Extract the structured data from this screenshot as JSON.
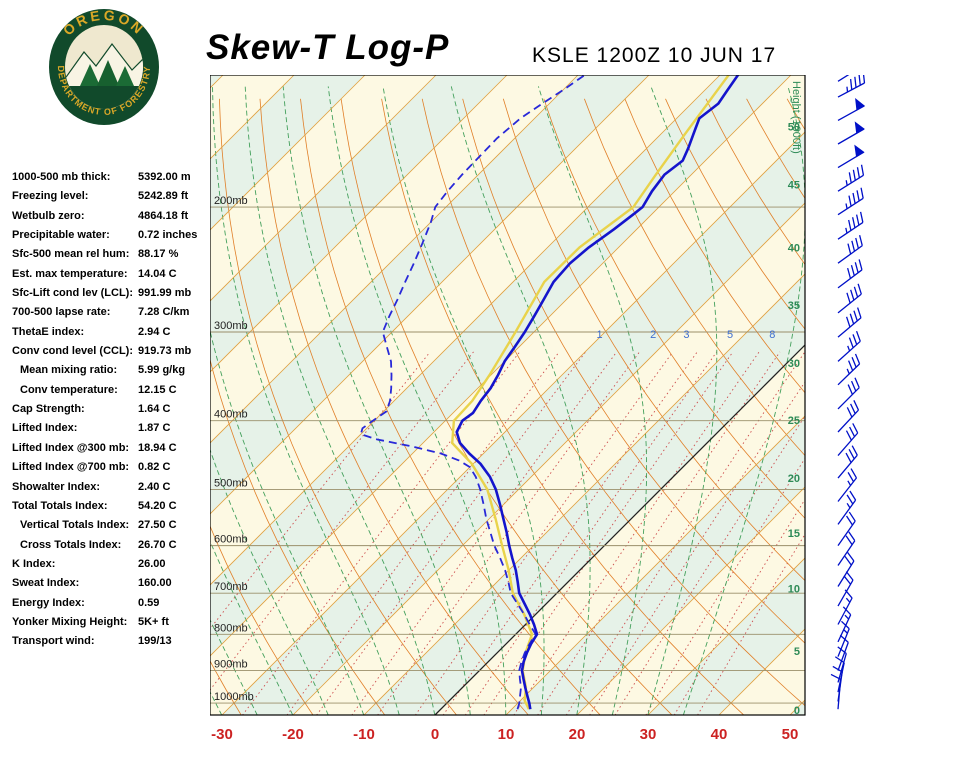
{
  "header": {
    "title": "Skew-T Log-P",
    "station": "KSLE 1200Z 10 JUN 17"
  },
  "logo": {
    "arc_top": "OREGON",
    "arc_bottom": "DEPARTMENT OF FORESTRY"
  },
  "stats": [
    {
      "label": "1000-500 mb thick:",
      "value": "5392.00 m"
    },
    {
      "label": "Freezing level:",
      "value": "5242.89 ft"
    },
    {
      "label": "Wetbulb zero:",
      "value": "4864.18 ft"
    },
    {
      "label": "Precipitable water:",
      "value": "0.72 inches"
    },
    {
      "label": "Sfc-500 mean rel hum:",
      "value": "88.17 %"
    },
    {
      "label": "Est. max temperature:",
      "value": "14.04 C"
    },
    {
      "label": "Sfc-Lift cond lev (LCL):",
      "value": "991.99 mb"
    },
    {
      "label": "700-500 lapse rate:",
      "value": "7.28 C/km"
    },
    {
      "label": "ThetaE index:",
      "value": "2.94 C"
    },
    {
      "label": "Conv cond level (CCL):",
      "value": "919.73 mb"
    },
    {
      "label": "Mean mixing ratio:",
      "value": "5.99 g/kg",
      "indent": true
    },
    {
      "label": "Conv temperature:",
      "value": "12.15 C",
      "indent": true
    },
    {
      "label": "Cap Strength:",
      "value": "1.64 C"
    },
    {
      "label": "Lifted Index:",
      "value": "1.87 C"
    },
    {
      "label": "Lifted Index @300 mb:",
      "value": "18.94 C"
    },
    {
      "label": "Lifted Index @700 mb:",
      "value": "0.82 C"
    },
    {
      "label": "Showalter Index:",
      "value": "2.40 C"
    },
    {
      "label": "Total Totals Index:",
      "value": "54.20 C"
    },
    {
      "label": "Vertical Totals Index:",
      "value": "27.50 C",
      "indent": true
    },
    {
      "label": "Cross Totals Index:",
      "value": "26.70 C",
      "indent": true
    },
    {
      "label": "K Index:",
      "value": "26.00"
    },
    {
      "label": "Sweat Index:",
      "value": "160.00"
    },
    {
      "label": "Energy Index:",
      "value": "0.59"
    },
    {
      "label": "Yonker Mixing Height:",
      "value": "5K+ ft"
    },
    {
      "label": "Transport wind:",
      "value": "199/13"
    }
  ],
  "chart_data": {
    "type": "skew-t-log-p",
    "station": "KSLE 1200Z 10 JUN 17",
    "pressure_axis_mb": [
      200,
      300,
      400,
      500,
      600,
      700,
      800,
      900,
      1000
    ],
    "temp_axis_c": [
      -30,
      -20,
      -10,
      0,
      10,
      20,
      30,
      40,
      50
    ],
    "isotherm_step_c": 10,
    "height_scale": {
      "label": "Height (1000ft)",
      "points": [
        [
          0,
          1022
        ],
        [
          5,
          844
        ],
        [
          10,
          690
        ],
        [
          15,
          576
        ],
        [
          20,
          482
        ],
        [
          25,
          399
        ],
        [
          30,
          332
        ],
        [
          35,
          275
        ],
        [
          40,
          228
        ],
        [
          45,
          186
        ],
        [
          50,
          154
        ]
      ]
    },
    "mixing_ratio_lines_gkg": [
      0.1,
      0.2,
      0.4,
      0.7,
      1,
      1.5,
      2,
      3,
      4,
      5,
      6,
      8,
      10,
      13,
      16,
      20,
      26,
      33,
      40
    ],
    "mixing_ratio_labels_gkg": [
      1,
      2,
      3,
      5,
      8
    ],
    "dry_adiabats_c": [
      -40,
      -30,
      -20,
      -10,
      0,
      10,
      20,
      30,
      40,
      50,
      60,
      70,
      80,
      90,
      100,
      110,
      120,
      130,
      140,
      150,
      160
    ],
    "moist_adiabats_c": [
      -35,
      -30,
      -25,
      -20,
      -15,
      -10,
      -5,
      0,
      5,
      10,
      15,
      20,
      25,
      30,
      35
    ],
    "temperature_profile": [
      [
        1020,
        12.6
      ],
      [
        1000,
        11.6
      ],
      [
        975,
        10.2
      ],
      [
        950,
        8.8
      ],
      [
        925,
        7.4
      ],
      [
        900,
        6.0
      ],
      [
        875,
        5.0
      ],
      [
        850,
        4.2
      ],
      [
        825,
        3.5
      ],
      [
        800,
        3.0
      ],
      [
        775,
        1.2
      ],
      [
        750,
        -0.8
      ],
      [
        725,
        -3.0
      ],
      [
        700,
        -5.3
      ],
      [
        675,
        -7.1
      ],
      [
        650,
        -9.0
      ],
      [
        625,
        -11.2
      ],
      [
        600,
        -13.4
      ],
      [
        575,
        -15.6
      ],
      [
        550,
        -18.0
      ],
      [
        525,
        -20.5
      ],
      [
        500,
        -23.2
      ],
      [
        480,
        -25.8
      ],
      [
        460,
        -29.0
      ],
      [
        445,
        -32.0
      ],
      [
        430,
        -34.8
      ],
      [
        415,
        -36.8
      ],
      [
        400,
        -37.6
      ],
      [
        390,
        -37.2
      ],
      [
        375,
        -37.8
      ],
      [
        360,
        -38.2
      ],
      [
        345,
        -39.0
      ],
      [
        330,
        -40.0
      ],
      [
        315,
        -40.6
      ],
      [
        300,
        -41.3
      ],
      [
        285,
        -42.2
      ],
      [
        270,
        -43.2
      ],
      [
        255,
        -44.3
      ],
      [
        240,
        -44.6
      ],
      [
        228,
        -44.2
      ],
      [
        215,
        -43.2
      ],
      [
        205,
        -42.6
      ],
      [
        200,
        -42.3
      ],
      [
        190,
        -43.2
      ],
      [
        180,
        -43.8
      ],
      [
        172,
        -43.2
      ],
      [
        165,
        -44.2
      ],
      [
        158,
        -45.4
      ],
      [
        150,
        -46.8
      ],
      [
        143,
        -46.2
      ],
      [
        137,
        -46.8
      ],
      [
        130,
        -47.5
      ]
    ],
    "dewpoint_profile": [
      [
        1020,
        10.8
      ],
      [
        1000,
        10.2
      ],
      [
        975,
        9.2
      ],
      [
        950,
        8.2
      ],
      [
        925,
        6.9
      ],
      [
        900,
        5.6
      ],
      [
        875,
        4.7
      ],
      [
        850,
        3.9
      ],
      [
        825,
        3.3
      ],
      [
        800,
        2.8
      ],
      [
        775,
        0.6
      ],
      [
        750,
        -1.6
      ],
      [
        725,
        -4.0
      ],
      [
        700,
        -6.5
      ],
      [
        675,
        -8.4
      ],
      [
        650,
        -10.5
      ],
      [
        625,
        -12.9
      ],
      [
        600,
        -15.5
      ],
      [
        575,
        -17.9
      ],
      [
        550,
        -20.4
      ],
      [
        525,
        -22.8
      ],
      [
        500,
        -25.4
      ],
      [
        480,
        -27.8
      ],
      [
        465,
        -30.0
      ],
      [
        455,
        -32.5
      ],
      [
        445,
        -36.0
      ],
      [
        435,
        -41.0
      ],
      [
        425,
        -47.0
      ],
      [
        418,
        -50.0
      ],
      [
        410,
        -50.6
      ],
      [
        400,
        -50.2
      ],
      [
        388,
        -49.6
      ],
      [
        375,
        -50.6
      ],
      [
        360,
        -52.2
      ],
      [
        345,
        -54.0
      ],
      [
        330,
        -56.0
      ],
      [
        315,
        -58.6
      ],
      [
        300,
        -61.3
      ],
      [
        285,
        -62.6
      ],
      [
        270,
        -63.8
      ],
      [
        255,
        -65.2
      ],
      [
        240,
        -66.6
      ],
      [
        225,
        -68.2
      ],
      [
        210,
        -70.0
      ],
      [
        200,
        -71.5
      ],
      [
        190,
        -72.0
      ],
      [
        180,
        -72.3
      ],
      [
        170,
        -72.4
      ],
      [
        160,
        -72.5
      ],
      [
        150,
        -72.0
      ],
      [
        143,
        -71.0
      ],
      [
        137,
        -70.0
      ],
      [
        130,
        -69.0
      ]
    ],
    "parcel_profile": [
      [
        1020,
        12.4
      ],
      [
        992,
        10.6
      ],
      [
        950,
        8.9
      ],
      [
        900,
        6.1
      ],
      [
        850,
        4.0
      ],
      [
        800,
        2.3
      ],
      [
        750,
        -1.6
      ],
      [
        700,
        -6.2
      ],
      [
        650,
        -10.0
      ],
      [
        600,
        -14.4
      ],
      [
        550,
        -19.1
      ],
      [
        500,
        -24.4
      ],
      [
        460,
        -30.2
      ],
      [
        430,
        -35.9
      ],
      [
        400,
        -38.8
      ],
      [
        375,
        -39.0
      ],
      [
        345,
        -40.2
      ],
      [
        300,
        -42.6
      ],
      [
        255,
        -45.6
      ],
      [
        228,
        -45.5
      ],
      [
        200,
        -43.6
      ],
      [
        180,
        -45.0
      ],
      [
        158,
        -46.6
      ],
      [
        130,
        -48.8
      ]
    ],
    "wind_barbs": [
      [
        1020,
        185,
        8
      ],
      [
        995,
        188,
        10
      ],
      [
        965,
        192,
        10
      ],
      [
        935,
        196,
        12
      ],
      [
        900,
        200,
        12
      ],
      [
        860,
        202,
        14
      ],
      [
        820,
        205,
        15
      ],
      [
        775,
        208,
        15
      ],
      [
        730,
        210,
        18
      ],
      [
        685,
        212,
        20
      ],
      [
        640,
        214,
        20
      ],
      [
        600,
        215,
        22
      ],
      [
        560,
        216,
        25
      ],
      [
        520,
        218,
        25
      ],
      [
        482,
        220,
        28
      ],
      [
        448,
        221,
        30
      ],
      [
        415,
        223,
        30
      ],
      [
        385,
        225,
        32
      ],
      [
        356,
        226,
        35
      ],
      [
        330,
        228,
        35
      ],
      [
        305,
        230,
        38
      ],
      [
        282,
        231,
        40
      ],
      [
        260,
        233,
        40
      ],
      [
        240,
        234,
        42
      ],
      [
        222,
        236,
        45
      ],
      [
        205,
        237,
        45
      ],
      [
        190,
        238,
        46
      ],
      [
        176,
        239,
        48
      ],
      [
        163,
        240,
        50
      ],
      [
        151,
        241,
        48
      ],
      [
        140,
        242,
        45
      ],
      [
        133,
        238,
        42
      ]
    ],
    "colors": {
      "background": "#fdf9e3",
      "band": "#e6f2e8",
      "isotherm": "#e0a040",
      "zero_isotherm": "#222222",
      "dry_adiabat": "#e07f28",
      "moist_adiabat": "#44a05c",
      "mixing_ratio": "#cc4c4c",
      "mixing_label": "#3f6fd0",
      "pressure_line": "#9a8f6a",
      "pressure_label": "#222222",
      "height_label": "#2e8b57",
      "axis_label": "#cc2222",
      "temperature": "#1414cc",
      "dewpoint": "#2828d8",
      "parcel": "#e9d34b",
      "wind_barb": "#0010c8"
    }
  }
}
